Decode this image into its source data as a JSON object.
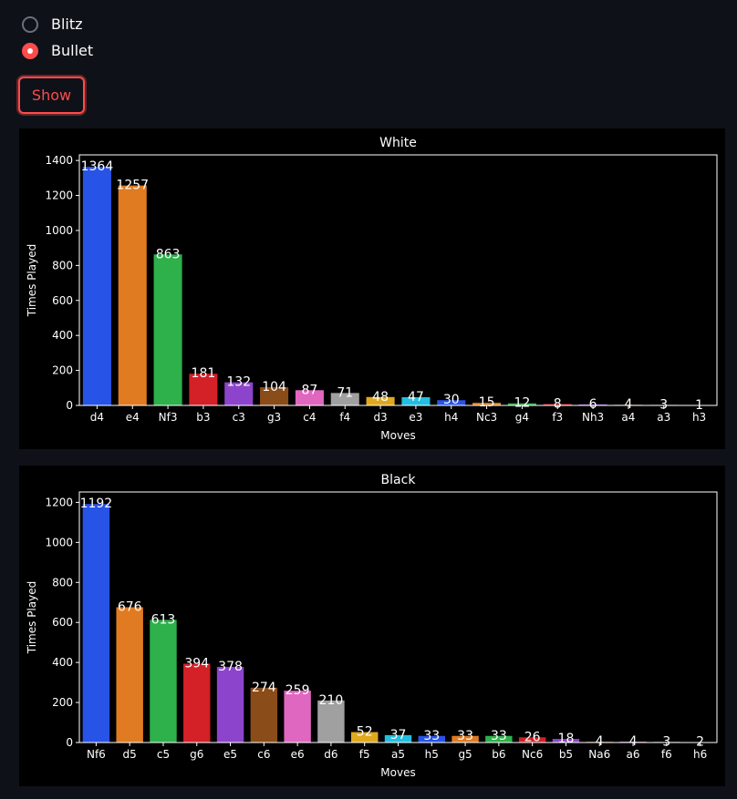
{
  "controls": {
    "radio_options": [
      {
        "label": "Blitz",
        "selected": false
      },
      {
        "label": "Bullet",
        "selected": true
      }
    ],
    "show_label": "Show"
  },
  "colors": {
    "accent": "#ff4b4b",
    "palette": [
      "#2753e6",
      "#e07b22",
      "#2eb04b",
      "#d42027",
      "#8d44cc",
      "#8a4c18",
      "#e067c0",
      "#a0a0a0",
      "#e0a91d",
      "#22bfe0"
    ]
  },
  "chart_data": [
    {
      "type": "bar",
      "title": "White",
      "xlabel": "Moves",
      "ylabel": "Times Played",
      "ylim": [
        0,
        1432
      ],
      "yticks": [
        0,
        200,
        400,
        600,
        800,
        1000,
        1200,
        1400
      ],
      "categories": [
        "d4",
        "e4",
        "Nf3",
        "b3",
        "c3",
        "g3",
        "c4",
        "f4",
        "d3",
        "e3",
        "h4",
        "Nc3",
        "g4",
        "f3",
        "Nh3",
        "a4",
        "a3",
        "h3"
      ],
      "values": [
        1364,
        1257,
        863,
        181,
        132,
        104,
        87,
        71,
        48,
        47,
        30,
        15,
        12,
        8,
        6,
        4,
        3,
        1
      ],
      "grid": false,
      "legend": "none"
    },
    {
      "type": "bar",
      "title": "Black",
      "xlabel": "Moves",
      "ylabel": "Times Played",
      "ylim": [
        0,
        1252
      ],
      "yticks": [
        0,
        200,
        400,
        600,
        800,
        1000,
        1200
      ],
      "categories": [
        "Nf6",
        "d5",
        "c5",
        "g6",
        "e5",
        "c6",
        "e6",
        "d6",
        "f5",
        "a5",
        "h5",
        "g5",
        "b6",
        "Nc6",
        "b5",
        "Na6",
        "a6",
        "f6",
        "h6"
      ],
      "values": [
        1192,
        676,
        613,
        394,
        378,
        274,
        259,
        210,
        52,
        37,
        33,
        33,
        33,
        26,
        18,
        4,
        4,
        3,
        2
      ],
      "grid": false,
      "legend": "none"
    }
  ]
}
